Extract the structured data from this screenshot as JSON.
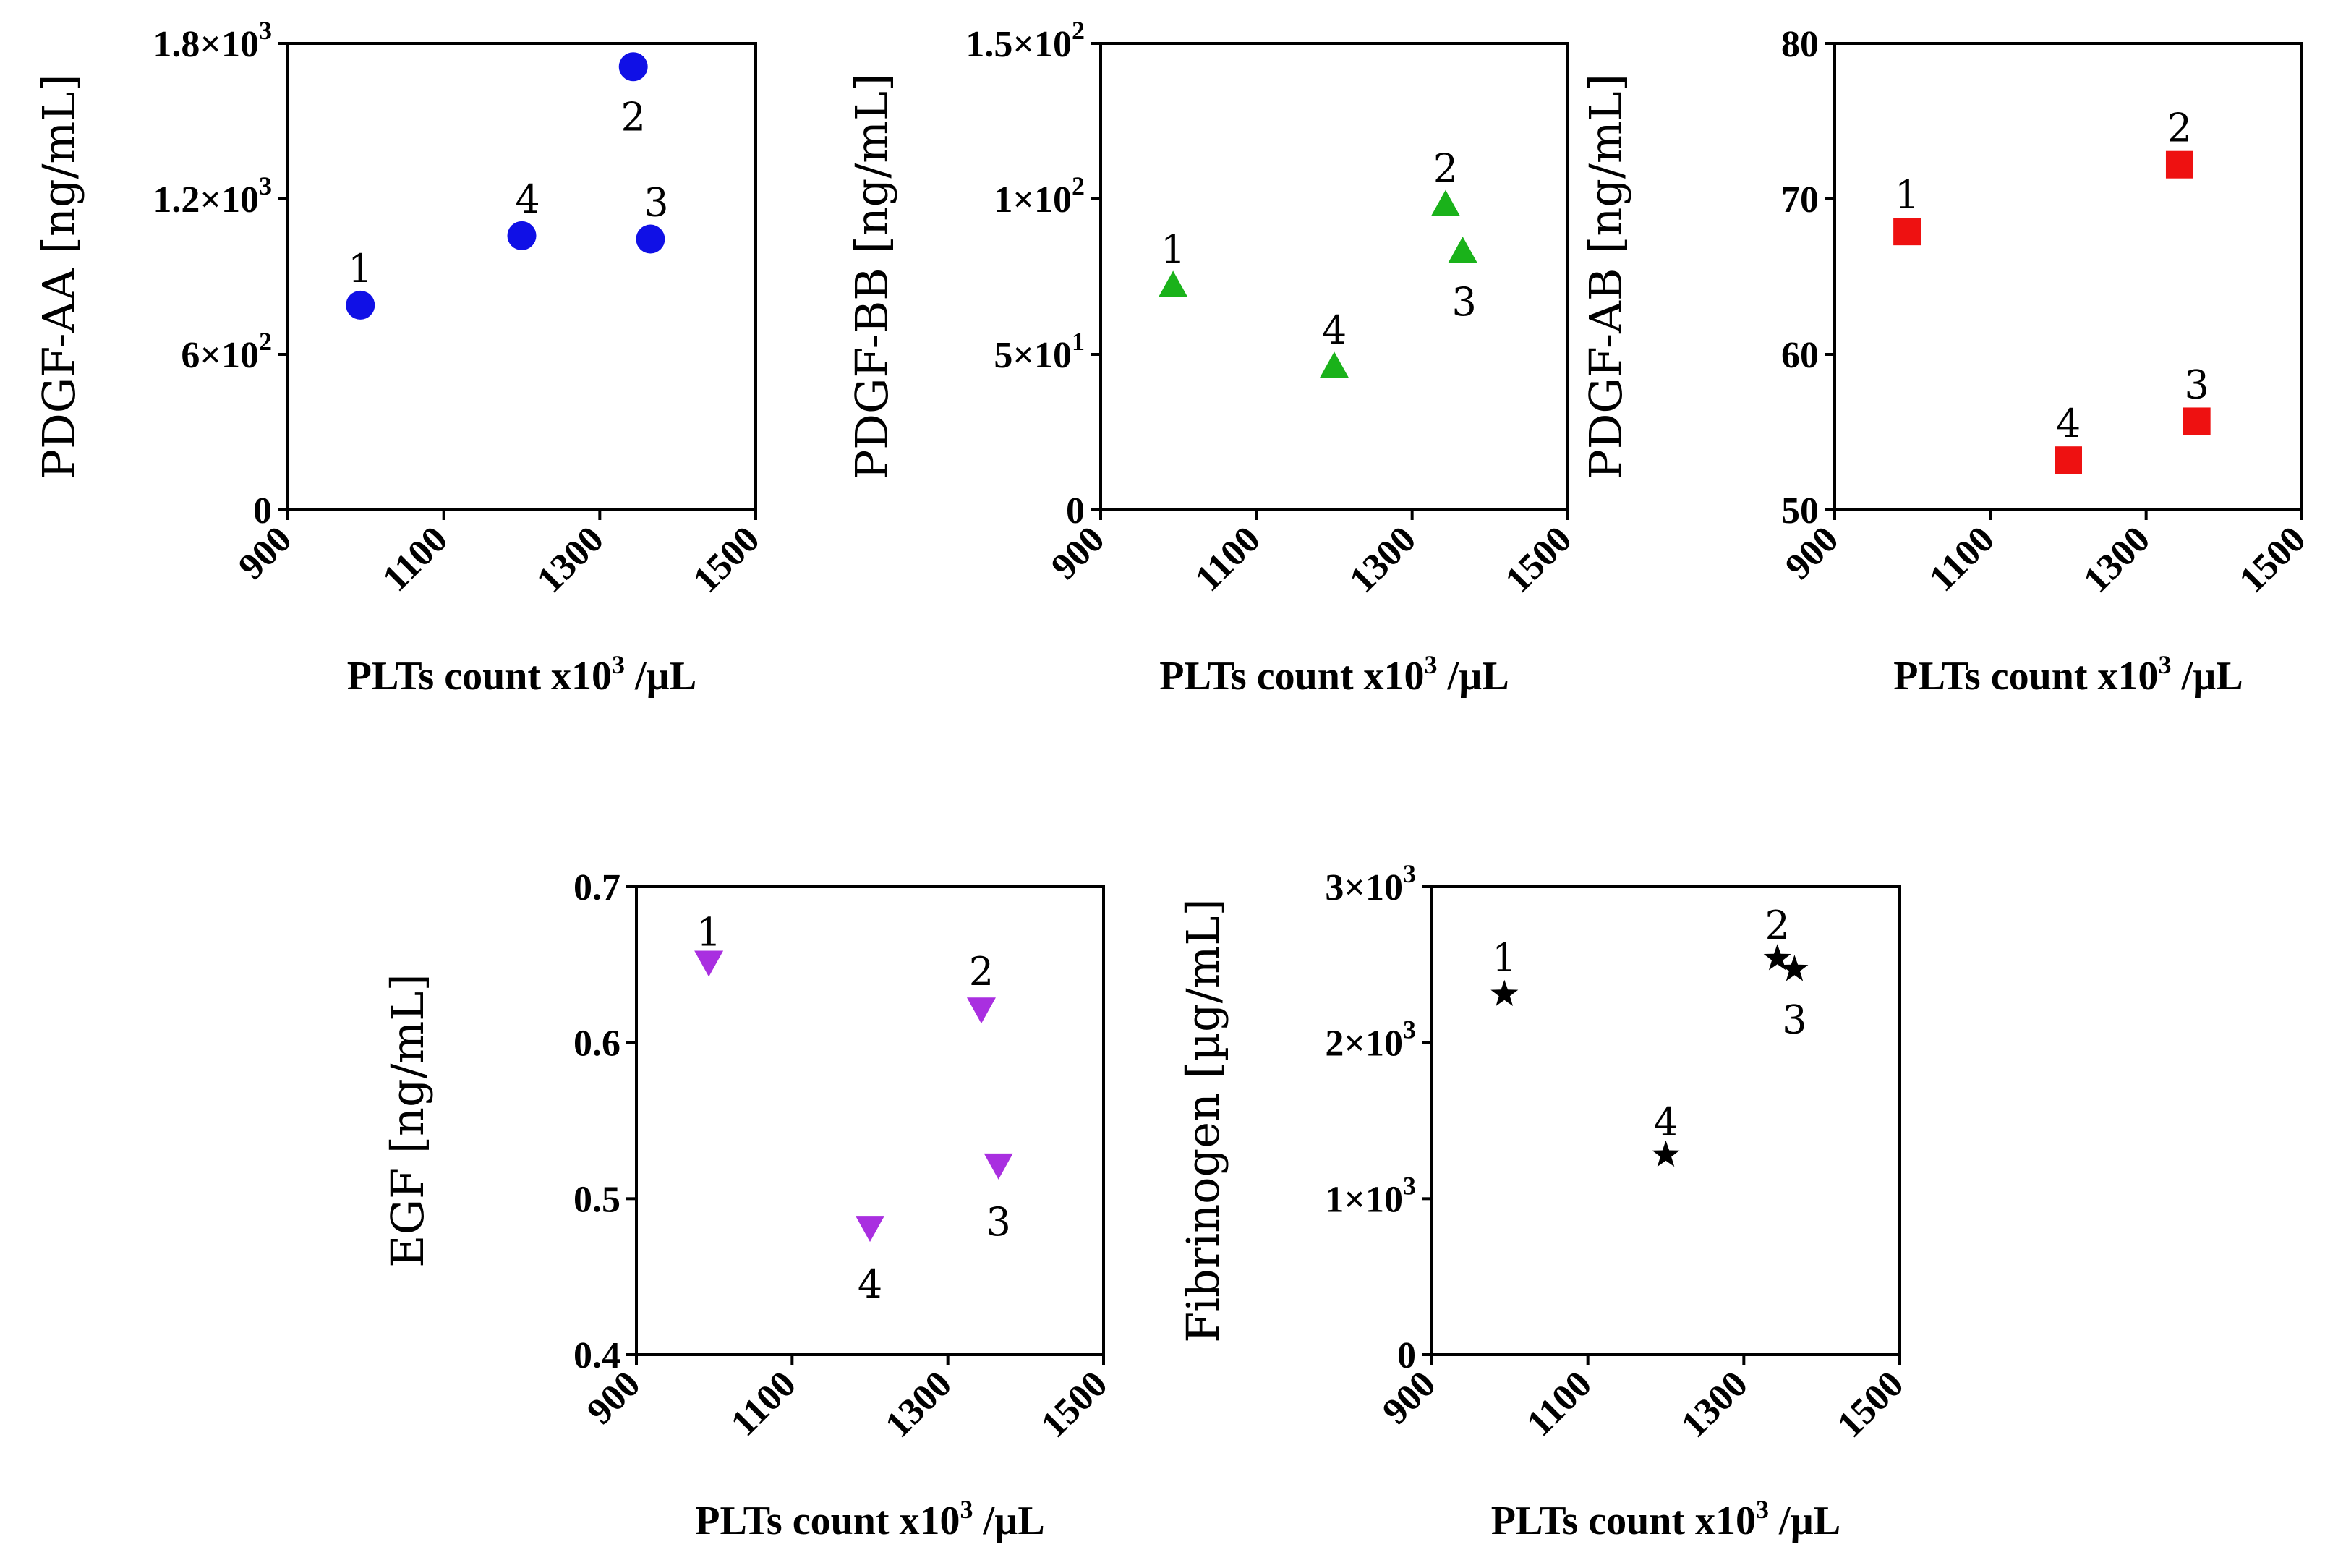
{
  "chart_data": [
    {
      "id": "pdgf-aa",
      "type": "scatter",
      "ylabel": "PDGF-AA [ng/mL]",
      "xlabel": {
        "main": "PLTs count x10",
        "sup": "3",
        "tail": " /µL"
      },
      "xlim": [
        900,
        1500
      ],
      "xticks": [
        "900",
        "1100",
        "1300",
        "1500"
      ],
      "ylim": [
        0,
        1800
      ],
      "yticks": [
        {
          "v": 0,
          "m": "0",
          "e": ""
        },
        {
          "v": 600,
          "m": "6×10",
          "e": "2"
        },
        {
          "v": 1200,
          "m": "1.2×10",
          "e": "3"
        },
        {
          "v": 1800,
          "m": "1.8×10",
          "e": "3"
        }
      ],
      "marker": "circle",
      "color": "#1010e6",
      "points": [
        {
          "label": "1",
          "x": 993,
          "y": 790
        },
        {
          "label": "2",
          "x": 1343,
          "y": 1710
        },
        {
          "label": "3",
          "x": 1365,
          "y": 1045
        },
        {
          "label": "4",
          "x": 1200,
          "y": 1058
        }
      ]
    },
    {
      "id": "pdgf-bb",
      "type": "scatter",
      "ylabel": "PDGF-BB [ng/mL]",
      "xlabel": {
        "main": "PLTs count x10",
        "sup": "3",
        "tail": " /µL"
      },
      "xlim": [
        900,
        1500
      ],
      "xticks": [
        "900",
        "1100",
        "1300",
        "1500"
      ],
      "ylim": [
        0,
        150
      ],
      "yticks": [
        {
          "v": 0,
          "m": "0",
          "e": ""
        },
        {
          "v": 50,
          "m": "5×10",
          "e": "1"
        },
        {
          "v": 100,
          "m": "1×10",
          "e": "2"
        },
        {
          "v": 150,
          "m": "1.5×10",
          "e": "2"
        }
      ],
      "marker": "triangle-up",
      "color": "#1ab21a",
      "points": [
        {
          "label": "1",
          "x": 993,
          "y": 72
        },
        {
          "label": "2",
          "x": 1343,
          "y": 98
        },
        {
          "label": "3",
          "x": 1365,
          "y": 83
        },
        {
          "label": "4",
          "x": 1200,
          "y": 46
        }
      ]
    },
    {
      "id": "pdgf-ab",
      "type": "scatter",
      "ylabel": "PDGF-AB [ng/mL]",
      "xlabel": {
        "main": "PLTs count x10",
        "sup": "3",
        "tail": " /µL"
      },
      "xlim": [
        900,
        1500
      ],
      "xticks": [
        "900",
        "1100",
        "1300",
        "1500"
      ],
      "ylim": [
        50,
        80
      ],
      "yticks": [
        {
          "v": 50,
          "m": "50",
          "e": ""
        },
        {
          "v": 60,
          "m": "60",
          "e": ""
        },
        {
          "v": 70,
          "m": "70",
          "e": ""
        },
        {
          "v": 80,
          "m": "80",
          "e": ""
        }
      ],
      "marker": "square",
      "color": "#ee1111",
      "points": [
        {
          "label": "1",
          "x": 993,
          "y": 67.9
        },
        {
          "label": "2",
          "x": 1343,
          "y": 72.2
        },
        {
          "label": "3",
          "x": 1365,
          "y": 55.7
        },
        {
          "label": "4",
          "x": 1200,
          "y": 53.2
        }
      ]
    },
    {
      "id": "egf",
      "type": "scatter",
      "ylabel": "EGF [ng/mL]",
      "xlabel": {
        "main": "PLTs count x10",
        "sup": "3",
        "tail": " /µL"
      },
      "xlim": [
        900,
        1500
      ],
      "xticks": [
        "900",
        "1100",
        "1300",
        "1500"
      ],
      "ylim": [
        0.4,
        0.7
      ],
      "yticks": [
        {
          "v": 0.4,
          "m": "0.4",
          "e": ""
        },
        {
          "v": 0.5,
          "m": "0.5",
          "e": ""
        },
        {
          "v": 0.6,
          "m": "0.6",
          "e": ""
        },
        {
          "v": 0.7,
          "m": "0.7",
          "e": ""
        }
      ],
      "marker": "triangle-down",
      "color": "#a92fe0",
      "points": [
        {
          "label": "1",
          "x": 993,
          "y": 0.652
        },
        {
          "label": "2",
          "x": 1343,
          "y": 0.622
        },
        {
          "label": "3",
          "x": 1365,
          "y": 0.522
        },
        {
          "label": "4",
          "x": 1200,
          "y": 0.482
        }
      ]
    },
    {
      "id": "fibrinogen",
      "type": "scatter",
      "ylabel": "Fibrinogen [µg/mL]",
      "xlabel": {
        "main": "PLTs count x10",
        "sup": "3",
        "tail": " /µL"
      },
      "xlim": [
        900,
        1500
      ],
      "xticks": [
        "900",
        "1100",
        "1300",
        "1500"
      ],
      "ylim": [
        0,
        3000
      ],
      "yticks": [
        {
          "v": 0,
          "m": "0",
          "e": ""
        },
        {
          "v": 1000,
          "m": "1×10",
          "e": "3"
        },
        {
          "v": 2000,
          "m": "2×10",
          "e": "3"
        },
        {
          "v": 3000,
          "m": "3×10",
          "e": "3"
        }
      ],
      "marker": "star",
      "color": "#000000",
      "points": [
        {
          "label": "1",
          "x": 993,
          "y": 2310
        },
        {
          "label": "2",
          "x": 1343,
          "y": 2540
        },
        {
          "label": "3",
          "x": 1365,
          "y": 2470
        },
        {
          "label": "4",
          "x": 1200,
          "y": 1280
        }
      ]
    }
  ]
}
